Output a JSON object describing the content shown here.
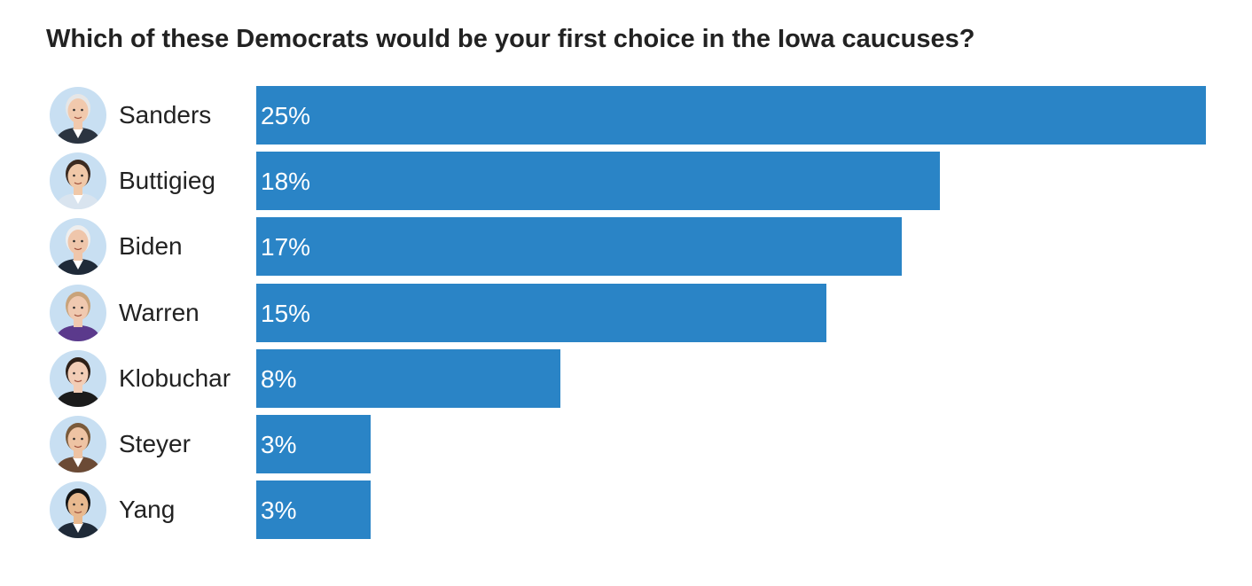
{
  "chart_data": {
    "type": "bar",
    "orientation": "horizontal",
    "title": "Which of these Democrats would be your first choice in the Iowa caucuses?",
    "bar_color": "#2a84c6",
    "avatar_bg": "#c8dff2",
    "grid": false,
    "categories": [
      "Sanders",
      "Buttigieg",
      "Biden",
      "Warren",
      "Klobuchar",
      "Steyer",
      "Yang"
    ],
    "values": [
      25,
      18,
      17,
      15,
      8,
      3,
      3
    ],
    "value_labels": [
      "25%",
      "18%",
      "17%",
      "15%",
      "8%",
      "3%",
      "3%"
    ],
    "xlim": [
      0,
      25
    ],
    "avatars": [
      {
        "name": "sanders-portrait",
        "hair": "#e6e6e6",
        "skin": "#f1c9ad",
        "suit": "#2b3440",
        "shirt": "#ffffff"
      },
      {
        "name": "buttigieg-portrait",
        "hair": "#3b2a20",
        "skin": "#f0c8a8",
        "suit": "#d9e4ef",
        "shirt": "#ffffff"
      },
      {
        "name": "biden-portrait",
        "hair": "#eeeeee",
        "skin": "#efc6ab",
        "suit": "#1f2a38",
        "shirt": "#ffffff"
      },
      {
        "name": "warren-portrait",
        "hair": "#c9a37a",
        "skin": "#f0c9b0",
        "suit": "#5b3a8c",
        "shirt": "#5b3a8c"
      },
      {
        "name": "klobuchar-portrait",
        "hair": "#2e2018",
        "skin": "#f2cdb6",
        "suit": "#1b1b1b",
        "shirt": "#1b1b1b"
      },
      {
        "name": "steyer-portrait",
        "hair": "#7a5a3a",
        "skin": "#eec3a3",
        "suit": "#6b4a35",
        "shirt": "#ffffff"
      },
      {
        "name": "yang-portrait",
        "hair": "#141414",
        "skin": "#e8b98f",
        "suit": "#1f2a38",
        "shirt": "#ffffff"
      }
    ]
  }
}
